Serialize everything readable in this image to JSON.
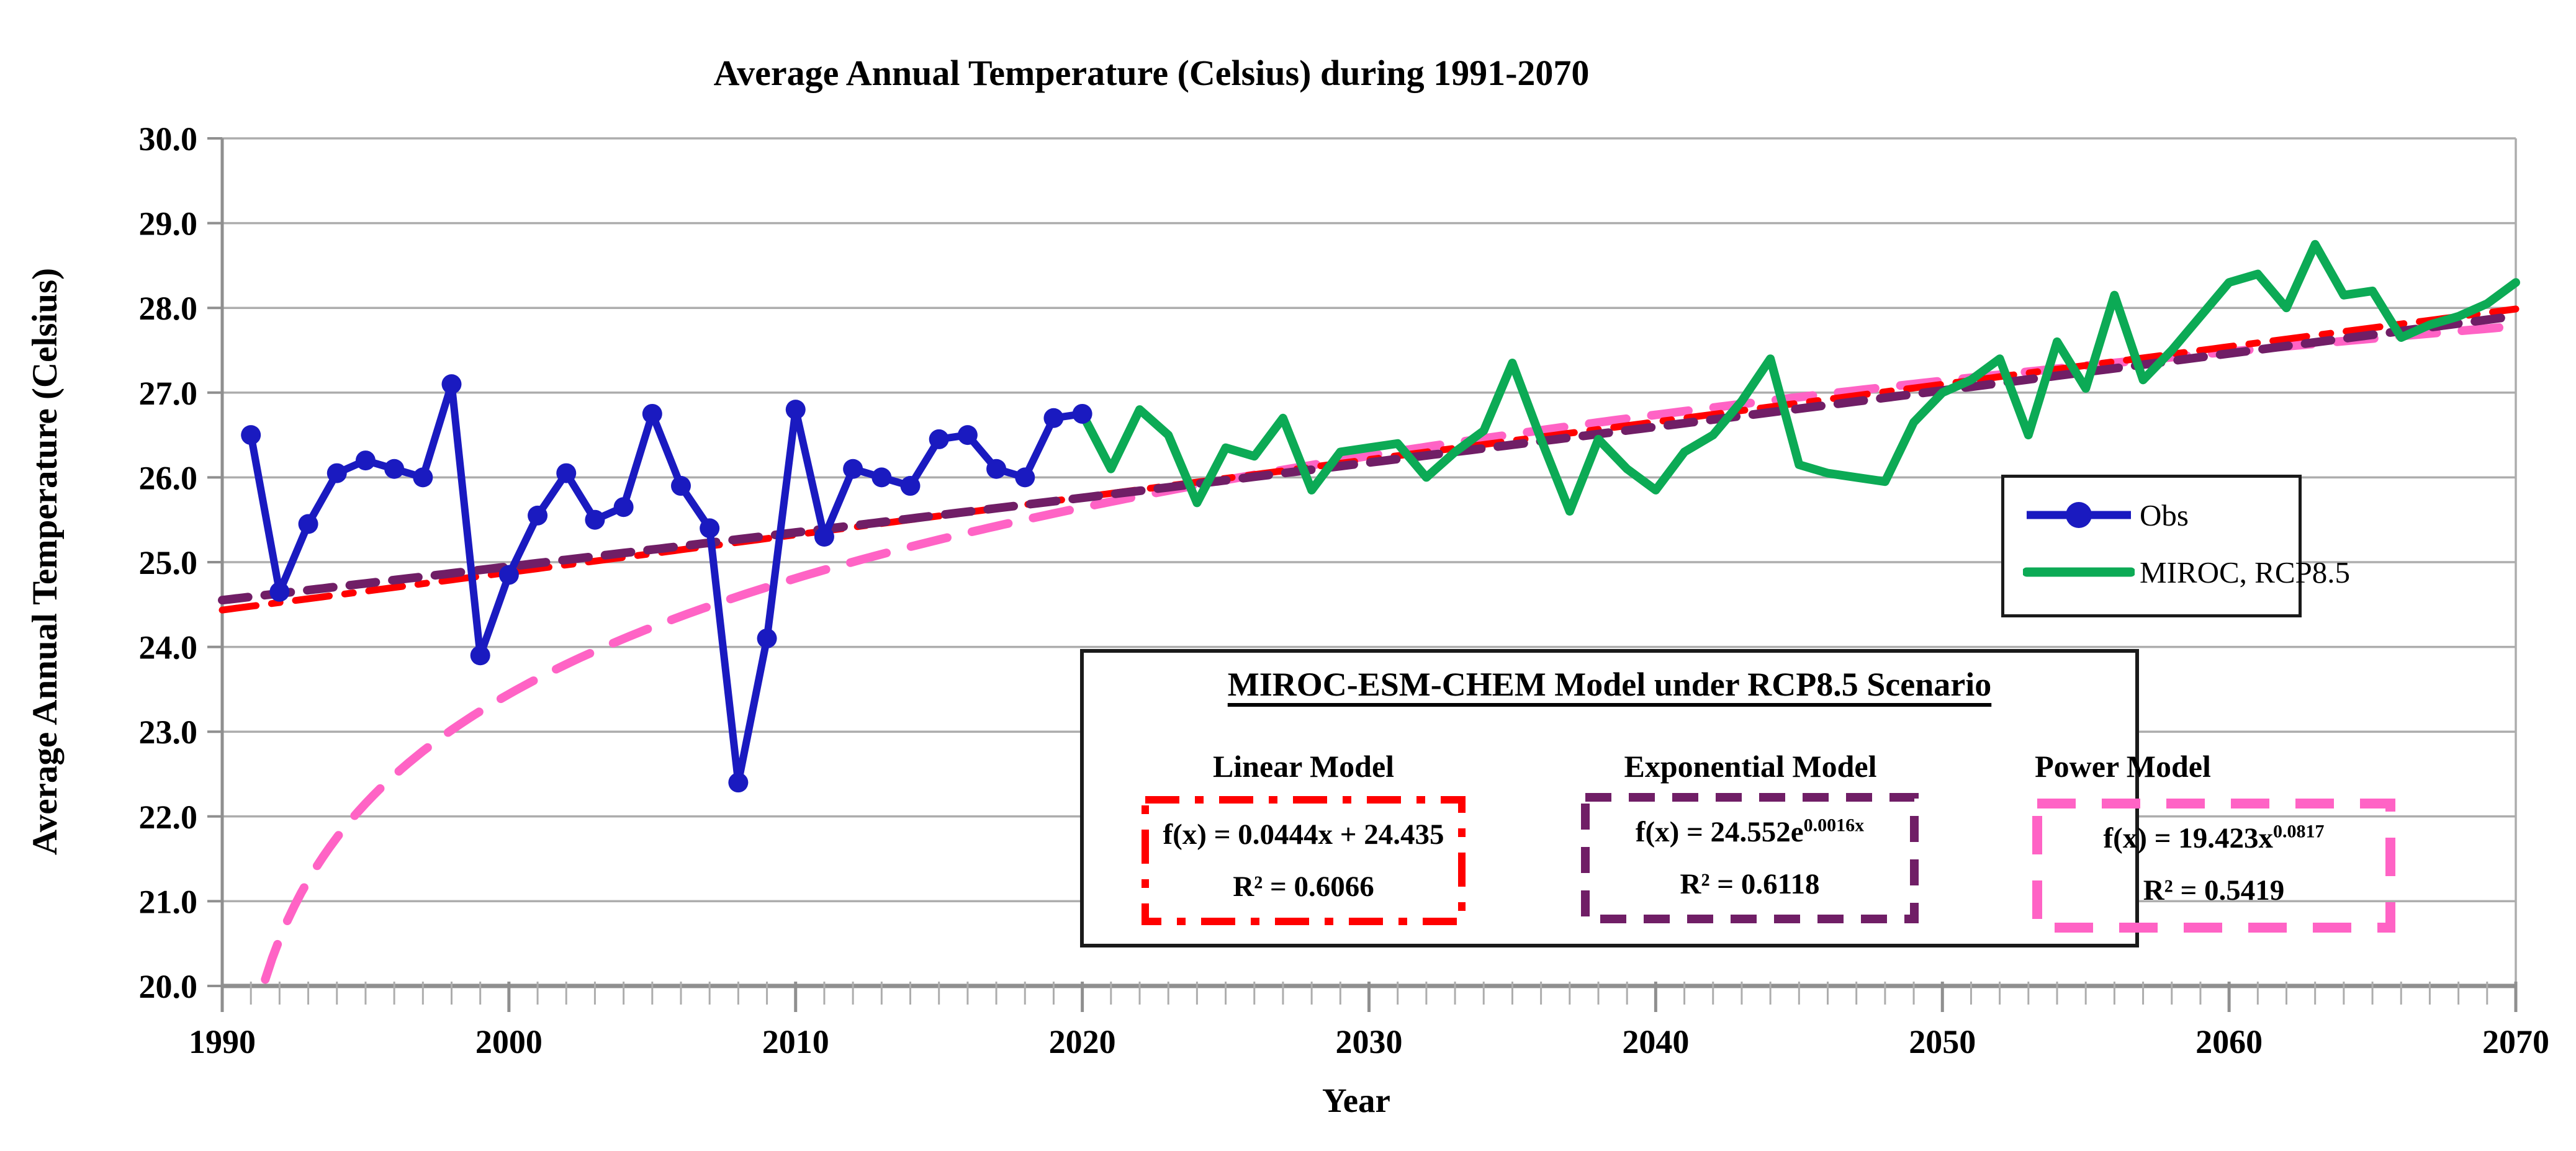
{
  "title": "Average Annual Temperature (Celsius) during 1991-2070",
  "colors": {
    "obs": "#1A1AC0",
    "miroc": "#0CAA55",
    "linear": "#FF0000",
    "exponential": "#701E66",
    "power": "#FF63C5",
    "grid": "#ADADAD",
    "axis": "#8F8F8F",
    "text": "#000000",
    "box_border": "#1A1A1A"
  },
  "y_axis": {
    "title": "Average Annual Temperature (Celsius)",
    "ticks": [
      {
        "value": 30,
        "label": "30.0"
      },
      {
        "value": 29,
        "label": "29.0"
      },
      {
        "value": 28,
        "label": "28.0"
      },
      {
        "value": 27,
        "label": "27.0"
      },
      {
        "value": 26,
        "label": "26.0"
      },
      {
        "value": 25,
        "label": "25.0"
      },
      {
        "value": 24,
        "label": "24.0"
      },
      {
        "value": 23,
        "label": "23.0"
      },
      {
        "value": 22,
        "label": "22.0"
      },
      {
        "value": 21,
        "label": "21.0"
      },
      {
        "value": 20,
        "label": "20.0"
      }
    ]
  },
  "x_axis": {
    "title": "Year",
    "ticks": [
      {
        "value": 1990,
        "label": "1990"
      },
      {
        "value": 2000,
        "label": "2000"
      },
      {
        "value": 2010,
        "label": "2010"
      },
      {
        "value": 2020,
        "label": "2020"
      },
      {
        "value": 2030,
        "label": "2030"
      },
      {
        "value": 2040,
        "label": "2040"
      },
      {
        "value": 2050,
        "label": "2050"
      },
      {
        "value": 2060,
        "label": "2060"
      },
      {
        "value": 2070,
        "label": "2070"
      }
    ]
  },
  "legend": {
    "items": [
      {
        "label": "Obs"
      },
      {
        "label": "MIROC, RCP8.5"
      }
    ]
  },
  "model_box": {
    "title": "MIROC-ESM-CHEM Model under RCP8.5 Scenario",
    "models": [
      {
        "name": "Linear Model",
        "eq_base": "f(x) = 0.0444x + 24.435",
        "eq_sup": "",
        "r2": "R² = 0.6066"
      },
      {
        "name": "Exponential Model",
        "eq_base": "f(x) = 24.552e",
        "eq_sup": "0.0016x",
        "r2": "R² = 0.6118"
      },
      {
        "name": "Power Model",
        "eq_base": "f(x) = 19.423x",
        "eq_sup": "0.0817",
        "r2": "R² = 0.5419"
      }
    ]
  },
  "chart_data": {
    "type": "line",
    "title": "Average Annual Temperature (Celsius) during 1991-2070",
    "xlabel": "Year",
    "ylabel": "Average Annual Temperature (Celsius)",
    "xlim": [
      1990,
      2070
    ],
    "ylim": [
      20,
      30
    ],
    "grid": "horizontal",
    "legend_position": "middle-right",
    "z_order": [
      "Power Model",
      "Linear Model",
      "Exponential Model",
      "MIROC, RCP8.5",
      "Obs"
    ],
    "series": [
      {
        "name": "Obs",
        "kind": "line-markers",
        "color": "#1A1AC0",
        "width": 12,
        "marker_radius": 16,
        "x": [
          1991,
          1992,
          1993,
          1994,
          1995,
          1996,
          1997,
          1998,
          1999,
          2000,
          2001,
          2002,
          2003,
          2004,
          2005,
          2006,
          2007,
          2008,
          2009,
          2010,
          2011,
          2012,
          2013,
          2014,
          2015,
          2016,
          2017,
          2018,
          2019,
          2020
        ],
        "values": [
          26.5,
          24.65,
          25.45,
          26.05,
          26.2,
          26.1,
          26.0,
          27.1,
          23.9,
          24.85,
          25.55,
          26.05,
          25.5,
          25.65,
          26.75,
          25.9,
          25.4,
          22.4,
          24.1,
          26.8,
          25.3,
          26.1,
          26.0,
          25.9,
          26.45,
          26.5,
          26.1,
          26.0,
          26.7,
          26.75
        ]
      },
      {
        "name": "MIROC, RCP8.5",
        "kind": "line",
        "color": "#0CAA55",
        "width": 14,
        "x": [
          2020,
          2021,
          2022,
          2023,
          2024,
          2025,
          2026,
          2027,
          2028,
          2029,
          2030,
          2031,
          2032,
          2033,
          2034,
          2035,
          2036,
          2037,
          2038,
          2039,
          2040,
          2041,
          2042,
          2043,
          2044,
          2045,
          2046,
          2047,
          2048,
          2049,
          2050,
          2051,
          2052,
          2053,
          2054,
          2055,
          2056,
          2057,
          2058,
          2059,
          2060,
          2061,
          2062,
          2063,
          2064,
          2065,
          2066,
          2067,
          2068,
          2069,
          2070
        ],
        "values": [
          26.75,
          26.1,
          26.8,
          26.5,
          25.7,
          26.35,
          26.25,
          26.7,
          25.85,
          26.3,
          26.35,
          26.4,
          26.0,
          26.3,
          26.55,
          27.35,
          26.45,
          25.6,
          26.45,
          26.1,
          25.85,
          26.3,
          26.5,
          26.9,
          27.4,
          26.15,
          26.05,
          26.0,
          25.95,
          26.65,
          27.0,
          27.15,
          27.4,
          26.5,
          27.6,
          27.05,
          28.15,
          27.15,
          27.5,
          27.9,
          28.3,
          28.4,
          28.0,
          28.75,
          28.15,
          28.2,
          27.65,
          27.8,
          27.9,
          28.05,
          28.3
        ]
      },
      {
        "name": "Linear Model",
        "kind": "trend-linear",
        "color": "#FF0000",
        "width": 11,
        "dash": [
          55,
          25,
          14,
          25
        ],
        "coeffs": {
          "m": 0.0444,
          "b": 24.435
        },
        "r2": 0.6066
      },
      {
        "name": "Exponential Model",
        "kind": "trend-exp",
        "color": "#701E66",
        "width": 14,
        "dash": [
          42,
          27
        ],
        "coeffs": {
          "a": 24.552,
          "k": 0.0016
        },
        "r2": 0.6118
      },
      {
        "name": "Power Model",
        "kind": "trend-power",
        "color": "#FF63C5",
        "width": 14,
        "dash": [
          60,
          41
        ],
        "coeffs": {
          "a": 19.423,
          "p": 0.0817
        },
        "r2": 0.5419
      }
    ]
  }
}
